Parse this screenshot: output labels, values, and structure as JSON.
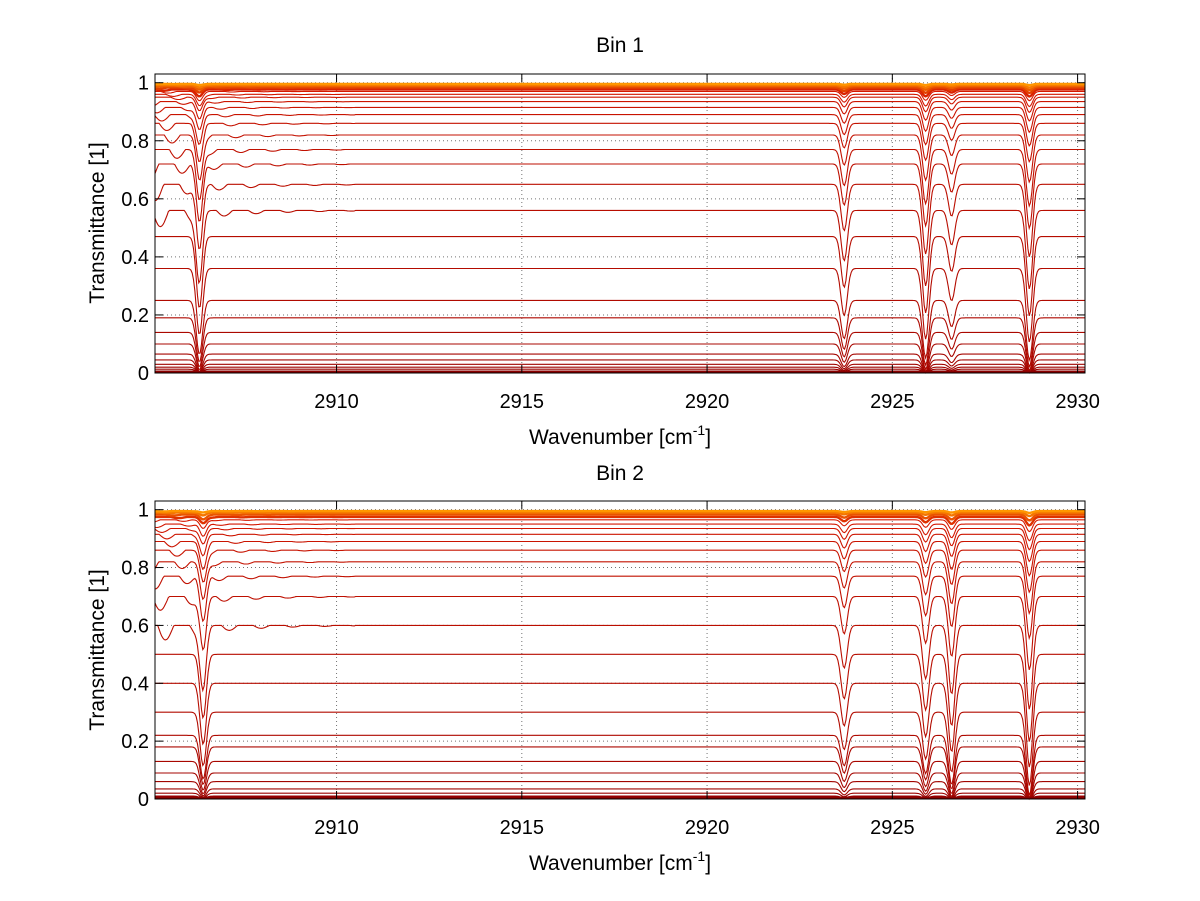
{
  "chart_data": [
    {
      "type": "line",
      "title": "Bin 1",
      "xlabel": "Wavenumber [cm",
      "xlabel_sup": "-1",
      "xlabel_end": "]",
      "ylabel": "Transmittance [1]",
      "xlim": [
        2905.1,
        2930.2
      ],
      "ylim": [
        0,
        1.03
      ],
      "xticks": [
        2910,
        2915,
        2920,
        2925,
        2930
      ],
      "yticks": [
        0,
        0.2,
        0.4,
        0.6,
        0.8,
        1
      ],
      "ytick_labels": [
        "0",
        "0.2",
        "0.4",
        "0.6",
        "0.8",
        "1"
      ],
      "grid": true,
      "baselines": [
        0.0,
        0.006,
        0.013,
        0.02,
        0.03,
        0.045,
        0.065,
        0.1,
        0.14,
        0.19,
        0.25,
        0.36,
        0.47,
        0.56,
        0.65,
        0.72,
        0.77,
        0.82,
        0.86,
        0.89,
        0.915,
        0.935,
        0.95,
        0.96,
        0.97,
        0.977,
        0.983,
        0.988,
        0.992,
        0.996
      ],
      "absorption_lines": [
        {
          "x": 2906.3,
          "depth": 0.45
        },
        {
          "x": 2923.7,
          "depth": 0.32
        },
        {
          "x": 2925.9,
          "depth": 0.48
        },
        {
          "x": 2926.6,
          "depth": 0.22
        },
        {
          "x": 2928.7,
          "depth": 0.5
        }
      ]
    },
    {
      "type": "line",
      "title": "Bin 2",
      "xlabel": "Wavenumber [cm",
      "xlabel_sup": "-1",
      "xlabel_end": "]",
      "ylabel": "Transmittance [1]",
      "xlim": [
        2905.1,
        2930.2
      ],
      "ylim": [
        0,
        1.03
      ],
      "xticks": [
        2910,
        2915,
        2920,
        2925,
        2930
      ],
      "yticks": [
        0,
        0.2,
        0.4,
        0.6,
        0.8,
        1
      ],
      "ytick_labels": [
        "0",
        "0.2",
        "0.4",
        "0.6",
        "0.8",
        "1"
      ],
      "grid": true,
      "baselines": [
        0.0,
        0.01,
        0.02,
        0.035,
        0.06,
        0.09,
        0.13,
        0.18,
        0.22,
        0.3,
        0.4,
        0.5,
        0.6,
        0.7,
        0.77,
        0.82,
        0.86,
        0.89,
        0.915,
        0.935,
        0.95,
        0.965,
        0.975,
        0.983,
        0.99,
        0.995
      ],
      "absorption_lines": [
        {
          "x": 2906.4,
          "depth": 0.4
        },
        {
          "x": 2923.7,
          "depth": 0.28
        },
        {
          "x": 2925.9,
          "depth": 0.35
        },
        {
          "x": 2926.6,
          "depth": 0.45
        },
        {
          "x": 2928.7,
          "depth": 0.55
        }
      ]
    }
  ]
}
